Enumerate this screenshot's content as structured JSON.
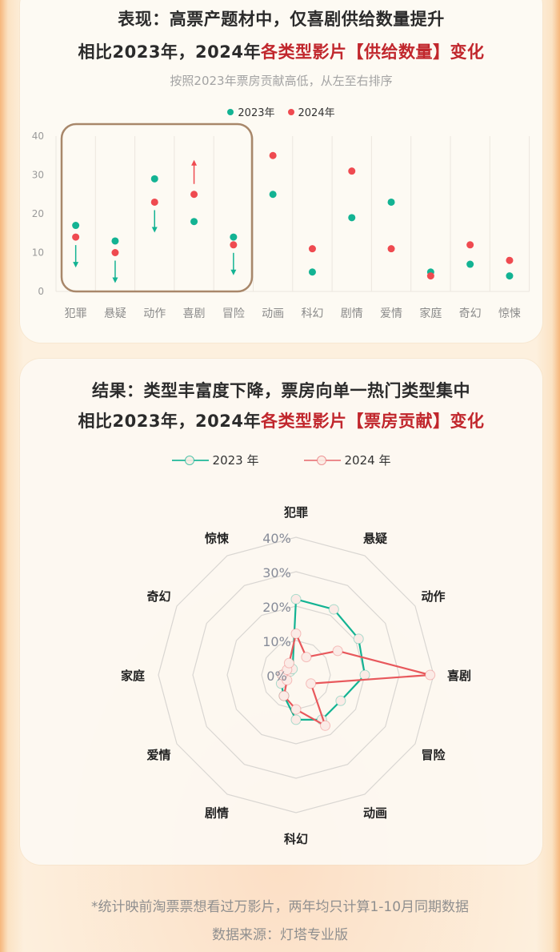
{
  "section1": {
    "title_line1": "表现：高票产题材中，仅喜剧供给数量提升",
    "title_line2_prefix": "相比2023年，2024年",
    "title_line2_highlight": "各类型影片【供给数量】变化",
    "subtitle": "按照2023年票房贡献高低，从左至右排序",
    "legend": [
      {
        "label": "2023年",
        "color": "#13b393"
      },
      {
        "label": "2024年",
        "color": "#ef4a50"
      }
    ]
  },
  "section2": {
    "title_line1": "结果：类型丰富度下降，票房向单一热门类型集中",
    "title_line2_prefix": "相比2023年，2024年",
    "title_line2_highlight": "各类型影片【票房贡献】变化",
    "legend": [
      {
        "label": "2023 年",
        "color": "#13b393"
      },
      {
        "label": "2024 年",
        "color": "#e8585c"
      }
    ]
  },
  "footer": {
    "note": "*统计映前淘票票想看过万影片，两年均只计算1-10月同期数据",
    "source": "数据来源：灯塔专业版"
  },
  "colors": {
    "teal": "#13b393",
    "red": "#ef4a50",
    "highlight": "#c1272d",
    "box": "#a8876a"
  },
  "chart_data": [
    {
      "type": "scatter",
      "title": "相比2023年，2024年各类型影片【供给数量】变化",
      "subtitle": "按照2023年票房贡献高低，从左至右排序",
      "categories": [
        "犯罪",
        "悬疑",
        "动作",
        "喜剧",
        "冒险",
        "动画",
        "科幻",
        "剧情",
        "爱情",
        "家庭",
        "奇幻",
        "惊悚"
      ],
      "series": [
        {
          "name": "2023年",
          "color": "#13b393",
          "values": [
            17,
            13,
            29,
            18,
            14,
            25,
            5,
            19,
            23,
            5,
            7,
            4
          ]
        },
        {
          "name": "2024年",
          "color": "#ef4a50",
          "values": [
            14,
            10,
            23,
            25,
            12,
            35,
            11,
            31,
            11,
            4,
            12,
            8
          ]
        }
      ],
      "yticks": [
        0,
        10,
        20,
        30,
        40
      ],
      "ylim": [
        0,
        40
      ],
      "xlabel": "",
      "ylabel": "",
      "grid": "vertical",
      "legend_position": "top",
      "annotations": {
        "highlight_box": [
          "犯罪",
          "悬疑",
          "动作",
          "喜剧",
          "冒险"
        ],
        "arrows": [
          {
            "category": "犯罪",
            "direction": "down",
            "color": "#13b393"
          },
          {
            "category": "悬疑",
            "direction": "down",
            "color": "#13b393"
          },
          {
            "category": "动作",
            "direction": "down",
            "color": "#13b393"
          },
          {
            "category": "喜剧",
            "direction": "up",
            "color": "#ef4a50"
          },
          {
            "category": "冒险",
            "direction": "down",
            "color": "#13b393"
          }
        ]
      }
    },
    {
      "type": "radar",
      "title": "相比2023年，2024年各类型影片【票房贡献】变化",
      "categories": [
        "犯罪",
        "悬疑",
        "动作",
        "喜剧",
        "冒险",
        "动画",
        "科幻",
        "剧情",
        "爱情",
        "家庭",
        "奇幻",
        "惊悚"
      ],
      "series": [
        {
          "name": "2023 年",
          "color": "#13b393",
          "values": [
            22,
            22,
            21,
            20,
            15,
            15,
            13,
            7,
            5,
            4,
            2,
            2
          ]
        },
        {
          "name": "2024 年",
          "color": "#e8585c",
          "values": [
            12,
            6,
            14,
            39,
            5,
            17,
            10,
            7,
            3,
            4,
            3,
            4
          ]
        }
      ],
      "rticks": [
        "0%",
        "10%",
        "20%",
        "30%",
        "40%"
      ],
      "rlim": [
        0,
        40
      ],
      "legend_position": "top"
    }
  ]
}
